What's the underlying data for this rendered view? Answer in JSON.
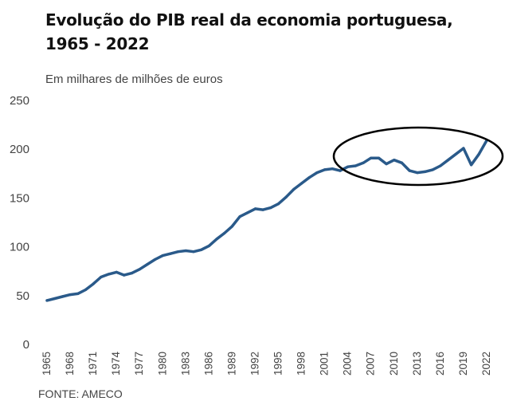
{
  "title_line1": "Evolução do PIB real da economia portuguesa,",
  "title_line2": "1965 - 2022",
  "subtitle": "Em milhares de milhões de euros",
  "source": "FONTE: AMECO",
  "colors": {
    "line": "#2a5a8a",
    "circle": "#000000",
    "text": "#444444"
  },
  "chart_data": {
    "type": "line",
    "title": "Evolução do PIB real da economia portuguesa, 1965 - 2022",
    "ylabel": "Em milhares de milhões de euros",
    "xlabel": "",
    "ylim": [
      0,
      250
    ],
    "yticks": [
      0,
      50,
      100,
      150,
      200,
      250
    ],
    "xticks": [
      1965,
      1968,
      1971,
      1974,
      1977,
      1980,
      1983,
      1986,
      1989,
      1992,
      1995,
      1998,
      2001,
      2004,
      2007,
      2010,
      2013,
      2016,
      2019,
      2022
    ],
    "grid": false,
    "annotation": "ellipse highlighting 2004-2022",
    "x": [
      1965,
      1966,
      1967,
      1968,
      1969,
      1970,
      1971,
      1972,
      1973,
      1974,
      1975,
      1976,
      1977,
      1978,
      1979,
      1980,
      1981,
      1982,
      1983,
      1984,
      1985,
      1986,
      1987,
      1988,
      1989,
      1990,
      1991,
      1992,
      1993,
      1994,
      1995,
      1996,
      1997,
      1998,
      1999,
      2000,
      2001,
      2002,
      2003,
      2004,
      2005,
      2006,
      2007,
      2008,
      2009,
      2010,
      2011,
      2012,
      2013,
      2014,
      2015,
      2016,
      2017,
      2018,
      2019,
      2020,
      2021,
      2022
    ],
    "values": [
      45,
      47,
      49,
      51,
      52,
      56,
      62,
      69,
      72,
      74,
      71,
      73,
      77,
      82,
      87,
      91,
      93,
      95,
      96,
      95,
      97,
      101,
      108,
      114,
      121,
      131,
      135,
      139,
      138,
      140,
      144,
      151,
      159,
      165,
      171,
      176,
      179,
      180,
      178,
      182,
      183,
      186,
      191,
      191,
      185,
      189,
      186,
      178,
      176,
      177,
      179,
      183,
      189,
      195,
      201,
      184,
      195,
      209
    ]
  }
}
